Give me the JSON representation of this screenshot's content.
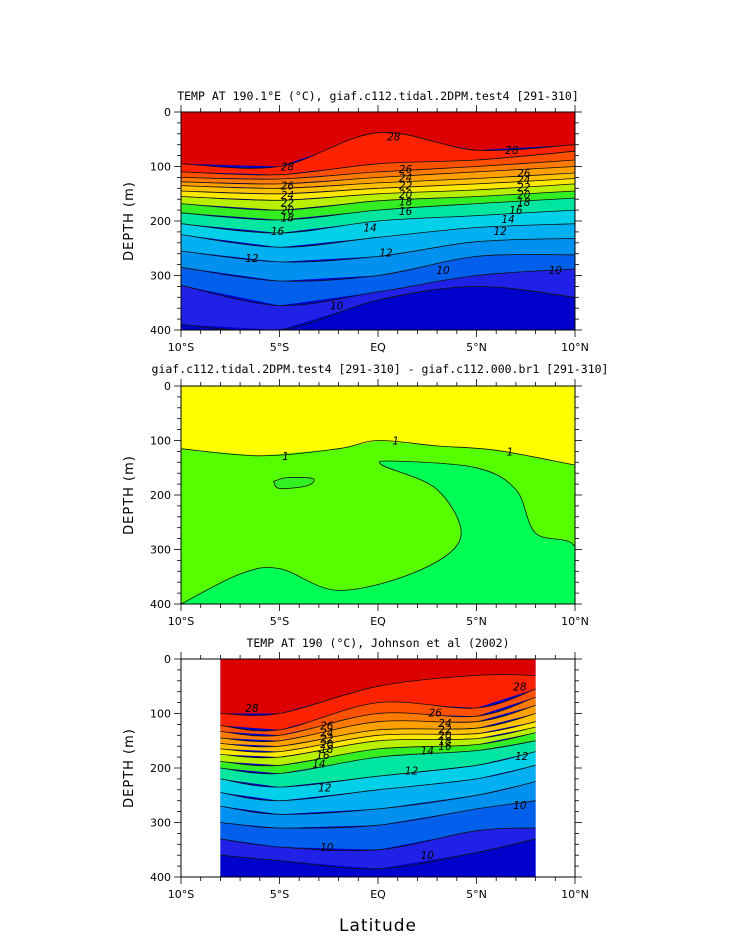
{
  "chart_data": [
    {
      "type": "contour",
      "title": "TEMP AT 190.1°E (°C), giaf.c112.tidal.2DPM.test4 [291-310]",
      "xlabel": "",
      "ylabel": "DEPTH (m)",
      "xlim": [
        -10,
        10
      ],
      "ylim": [
        0,
        400
      ],
      "xticks": [
        -10,
        -5,
        0,
        5,
        10
      ],
      "xticklabels": [
        "10°S",
        "5°S",
        "EQ",
        "5°N",
        "10°N"
      ],
      "yticks": [
        0,
        100,
        200,
        300,
        400
      ],
      "yticklabels": [
        "0",
        "100",
        "200",
        "300",
        "400"
      ],
      "levels": [
        28,
        26,
        24,
        22,
        20,
        18,
        16,
        14,
        12,
        10
      ],
      "profiles": [
        {
          "lat": -10,
          "depths": [
            95,
            110,
            120,
            128,
            135,
            145,
            155,
            168,
            185,
            205,
            225,
            255,
            285,
            318,
            390
          ]
        },
        {
          "lat": -5,
          "depths": [
            100,
            115,
            123,
            132,
            140,
            150,
            162,
            180,
            198,
            222,
            248,
            275,
            310,
            355,
            400
          ]
        },
        {
          "lat": 0,
          "depths": [
            38,
            95,
            110,
            120,
            130,
            140,
            150,
            163,
            180,
            200,
            230,
            265,
            300,
            330,
            345
          ]
        },
        {
          "lat": 5,
          "depths": [
            70,
            88,
            100,
            110,
            122,
            132,
            143,
            155,
            168,
            190,
            212,
            238,
            265,
            300,
            320
          ]
        },
        {
          "lat": 10,
          "depths": [
            60,
            72,
            88,
            100,
            112,
            122,
            132,
            145,
            158,
            180,
            205,
            232,
            262,
            288,
            340
          ]
        }
      ],
      "contour_labels": [
        {
          "text": "28",
          "lat": 0.8,
          "depth": 45
        },
        {
          "text": "28",
          "lat": 6.8,
          "depth": 70
        },
        {
          "text": "28",
          "lat": -4.6,
          "depth": 100
        },
        {
          "text": "26",
          "lat": -4.6,
          "depth": 135
        },
        {
          "text": "24",
          "lat": -4.6,
          "depth": 152
        },
        {
          "text": "22",
          "lat": -4.6,
          "depth": 166
        },
        {
          "text": "20",
          "lat": -4.6,
          "depth": 180
        },
        {
          "text": "18",
          "lat": -4.6,
          "depth": 194
        },
        {
          "text": "16",
          "lat": -5.1,
          "depth": 218
        },
        {
          "text": "26",
          "lat": 1.4,
          "depth": 105
        },
        {
          "text": "24",
          "lat": 1.4,
          "depth": 120
        },
        {
          "text": "22",
          "lat": 1.4,
          "depth": 135
        },
        {
          "text": "20",
          "lat": 1.4,
          "depth": 150
        },
        {
          "text": "18",
          "lat": 1.4,
          "depth": 164
        },
        {
          "text": "16",
          "lat": 1.4,
          "depth": 182
        },
        {
          "text": "14",
          "lat": -0.4,
          "depth": 212
        },
        {
          "text": "12",
          "lat": 0.4,
          "depth": 258
        },
        {
          "text": "12",
          "lat": -6.4,
          "depth": 268
        },
        {
          "text": "10",
          "lat": -2.1,
          "depth": 355
        },
        {
          "text": "10",
          "lat": 3.3,
          "depth": 290
        },
        {
          "text": "26",
          "lat": 7.4,
          "depth": 112
        },
        {
          "text": "24",
          "lat": 7.4,
          "depth": 124
        },
        {
          "text": "22",
          "lat": 7.4,
          "depth": 138
        },
        {
          "text": "20",
          "lat": 7.4,
          "depth": 151
        },
        {
          "text": "18",
          "lat": 7.4,
          "depth": 165
        },
        {
          "text": "16",
          "lat": 7.0,
          "depth": 180
        },
        {
          "text": "14",
          "lat": 6.6,
          "depth": 196
        },
        {
          "text": "12",
          "lat": 6.2,
          "depth": 218
        },
        {
          "text": "10",
          "lat": 9.0,
          "depth": 290
        }
      ]
    },
    {
      "type": "contour",
      "title": "giaf.c112.tidal.2DPM.test4 [291-310] - giaf.c112.000.br1 [291-310]",
      "xlabel": "",
      "ylabel": "DEPTH (m)",
      "xlim": [
        -10,
        10
      ],
      "ylim": [
        0,
        400
      ],
      "xticks": [
        -10,
        -5,
        0,
        5,
        10
      ],
      "xticklabels": [
        "10°S",
        "5°S",
        "EQ",
        "5°N",
        "10°N"
      ],
      "yticks": [
        0,
        100,
        200,
        300,
        400
      ],
      "yticklabels": [
        "0",
        "100",
        "200",
        "300",
        "400"
      ],
      "levels": [
        1
      ],
      "contour_labels": [
        {
          "text": "1",
          "lat": -4.7,
          "depth": 128
        },
        {
          "text": "1",
          "lat": 0.9,
          "depth": 100
        },
        {
          "text": "1",
          "lat": 6.7,
          "depth": 120
        }
      ]
    },
    {
      "type": "contour",
      "title": "TEMP AT 190 (°C), Johnson et al (2002)",
      "xlabel": "Latitude",
      "ylabel": "DEPTH (m)",
      "xlim": [
        -10,
        10
      ],
      "ylim": [
        0,
        400
      ],
      "data_xrange": [
        -8,
        8
      ],
      "xticks": [
        -10,
        -5,
        0,
        5,
        10
      ],
      "xticklabels": [
        "10°S",
        "5°S",
        "EQ",
        "5°N",
        "10°N"
      ],
      "yticks": [
        0,
        100,
        200,
        300,
        400
      ],
      "yticklabels": [
        "0",
        "100",
        "200",
        "300",
        "400"
      ],
      "levels": [
        28,
        26,
        24,
        22,
        20,
        18,
        16,
        14,
        12,
        10
      ],
      "profiles": [
        {
          "lat": -8,
          "depths": [
            100,
            122,
            133,
            145,
            155,
            165,
            175,
            188,
            200,
            220,
            245,
            270,
            300,
            330,
            360
          ]
        },
        {
          "lat": -5,
          "depths": [
            100,
            130,
            140,
            150,
            160,
            170,
            180,
            195,
            210,
            235,
            260,
            285,
            310,
            345,
            370
          ]
        },
        {
          "lat": 0,
          "depths": [
            50,
            80,
            100,
            115,
            130,
            140,
            150,
            165,
            180,
            215,
            240,
            275,
            305,
            350,
            385
          ]
        },
        {
          "lat": 5,
          "depths": [
            30,
            90,
            105,
            115,
            127,
            137,
            146,
            157,
            168,
            195,
            220,
            250,
            275,
            315,
            355
          ]
        },
        {
          "lat": 8,
          "depths": [
            30,
            55,
            70,
            85,
            100,
            115,
            125,
            135,
            150,
            170,
            195,
            225,
            260,
            310,
            330
          ]
        }
      ],
      "contour_labels": [
        {
          "text": "28",
          "lat": -6.4,
          "depth": 90
        },
        {
          "text": "28",
          "lat": 7.2,
          "depth": 50
        },
        {
          "text": "26",
          "lat": -2.6,
          "depth": 122
        },
        {
          "text": "24",
          "lat": -2.6,
          "depth": 135
        },
        {
          "text": "22",
          "lat": -2.6,
          "depth": 146
        },
        {
          "text": "20",
          "lat": -2.6,
          "depth": 156
        },
        {
          "text": "18",
          "lat": -2.6,
          "depth": 165
        },
        {
          "text": "16",
          "lat": -2.8,
          "depth": 176
        },
        {
          "text": "14",
          "lat": -3.0,
          "depth": 192
        },
        {
          "text": "12",
          "lat": -2.7,
          "depth": 236
        },
        {
          "text": "26",
          "lat": 2.9,
          "depth": 98
        },
        {
          "text": "24",
          "lat": 3.4,
          "depth": 117
        },
        {
          "text": "22",
          "lat": 3.4,
          "depth": 129
        },
        {
          "text": "20",
          "lat": 3.4,
          "depth": 140
        },
        {
          "text": "18",
          "lat": 3.4,
          "depth": 150
        },
        {
          "text": "16",
          "lat": 3.4,
          "depth": 160
        },
        {
          "text": "14",
          "lat": 2.5,
          "depth": 168
        },
        {
          "text": "12",
          "lat": 1.7,
          "depth": 205
        },
        {
          "text": "12",
          "lat": 7.3,
          "depth": 178
        },
        {
          "text": "10",
          "lat": -2.6,
          "depth": 345
        },
        {
          "text": "10",
          "lat": 2.5,
          "depth": 360
        },
        {
          "text": "10",
          "lat": 7.2,
          "depth": 268
        }
      ]
    }
  ]
}
